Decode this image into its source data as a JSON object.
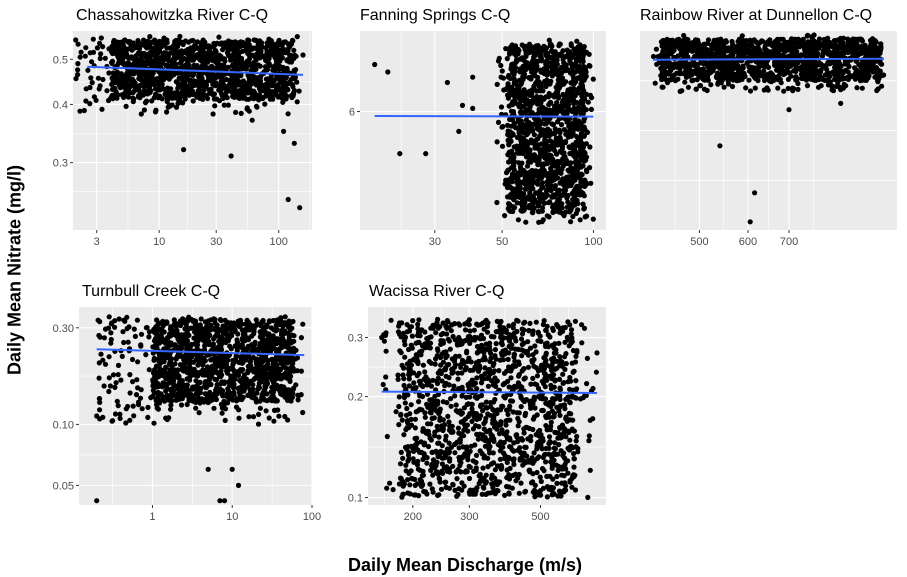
{
  "figure": {
    "xlabel": "Daily Mean Discharge (m/s)",
    "ylabel": "Daily Mean Nitrate (mg/l)"
  },
  "colors": {
    "panel_background": "#ebebeb",
    "gridline": "#ffffff",
    "points": "#000000",
    "fit_line": "#3366ff",
    "tick_label": "#4d4d4d"
  },
  "chart_data": [
    {
      "type": "scatter",
      "title": "Chassahowitzka River C-Q",
      "x_scale": "log",
      "y_scale": "log",
      "xlim": [
        1.9,
        190
      ],
      "ylim": [
        0.215,
        0.575
      ],
      "xticks": [
        3,
        10,
        30,
        100
      ],
      "xtick_labels": [
        "3",
        "10",
        "30",
        "100"
      ],
      "yticks": [
        0.3,
        0.4,
        0.5
      ],
      "ytick_labels": [
        "0.3",
        "0.4",
        "0.5"
      ],
      "grid": true,
      "point_cloud": {
        "x_range": [
          2,
          160
        ],
        "y_range": [
          0.38,
          0.56
        ],
        "core_x": [
          4,
          140
        ],
        "core_y": [
          0.41,
          0.55
        ]
      },
      "outliers": [
        [
          2,
          0.55
        ],
        [
          120,
          0.25
        ],
        [
          150,
          0.24
        ],
        [
          40,
          0.31
        ],
        [
          16,
          0.32
        ],
        [
          110,
          0.35
        ],
        [
          135,
          0.33
        ],
        [
          60,
          0.37
        ]
      ],
      "fit_line": {
        "x": [
          2.5,
          160
        ],
        "y": [
          0.482,
          0.463
        ]
      }
    },
    {
      "type": "scatter",
      "title": "Fanning Springs C-Q",
      "x_scale": "log",
      "y_scale": "log",
      "xlim": [
        17,
        110
      ],
      "ylim": [
        3.2,
        9.2
      ],
      "xticks": [
        30,
        50,
        100
      ],
      "xtick_labels": [
        "30",
        "50",
        "100"
      ],
      "yticks": [
        6
      ],
      "ytick_labels": [
        "6"
      ],
      "grid": true,
      "point_cloud": {
        "x_range": [
          48,
          100
        ],
        "y_range": [
          3.3,
          8.8
        ],
        "core_x": [
          52,
          95
        ],
        "core_y": [
          3.5,
          8.6
        ]
      },
      "outliers": [
        [
          19,
          7.7
        ],
        [
          21,
          7.4
        ],
        [
          23,
          4.8
        ],
        [
          28,
          4.8
        ],
        [
          37,
          6.2
        ],
        [
          40,
          6.1
        ],
        [
          33,
          7.0
        ],
        [
          40,
          7.2
        ],
        [
          36,
          5.4
        ]
      ],
      "fit_line": {
        "x": [
          19,
          100
        ],
        "y": [
          5.86,
          5.84
        ]
      }
    },
    {
      "type": "scatter",
      "title": "Rainbow River at Dunnellon C-Q",
      "x_scale": "log",
      "y_scale": "log",
      "xlim": [
        400,
        1050
      ],
      "ylim": [
        0.55,
        2.0
      ],
      "xticks": [
        500,
        600,
        700
      ],
      "xtick_labels": [
        "500",
        "600",
        "700"
      ],
      "yticks": [],
      "ytick_labels": [],
      "grid": true,
      "point_cloud": {
        "x_range": [
          420,
          1000
        ],
        "y_range": [
          1.35,
          1.95
        ],
        "core_x": [
          430,
          990
        ],
        "core_y": [
          1.45,
          1.9
        ]
      },
      "outliers": [
        [
          540,
          0.95
        ],
        [
          605,
          0.58
        ],
        [
          615,
          0.7
        ],
        [
          700,
          1.2
        ],
        [
          850,
          1.25
        ]
      ],
      "fit_line": {
        "x": [
          420,
          1000
        ],
        "y": [
          1.66,
          1.67
        ]
      }
    },
    {
      "type": "scatter",
      "title": "Turnbull Creek C-Q",
      "x_scale": "log",
      "y_scale": "log",
      "xlim": [
        0.12,
        100
      ],
      "ylim": [
        0.04,
        0.38
      ],
      "xticks": [
        1,
        10,
        100
      ],
      "xtick_labels": [
        "1",
        "10",
        "100"
      ],
      "yticks": [
        0.05,
        0.1,
        0.3
      ],
      "ytick_labels": [
        "0.05",
        "0.10",
        "0.30"
      ],
      "grid": true,
      "point_cloud": {
        "x_range": [
          0.2,
          80
        ],
        "y_range": [
          0.1,
          0.34
        ],
        "core_x": [
          1,
          60
        ],
        "core_y": [
          0.13,
          0.33
        ]
      },
      "outliers": [
        [
          0.2,
          0.042
        ],
        [
          7,
          0.042
        ],
        [
          8,
          0.042
        ],
        [
          5,
          0.06
        ],
        [
          10,
          0.06
        ],
        [
          12,
          0.05
        ],
        [
          0.2,
          0.11
        ]
      ],
      "fit_line": {
        "x": [
          0.2,
          80
        ],
        "y": [
          0.235,
          0.22
        ]
      }
    },
    {
      "type": "scatter",
      "title": "Wacissa River C-Q",
      "x_scale": "log",
      "y_scale": "log",
      "xlim": [
        145,
        800
      ],
      "ylim": [
        0.095,
        0.37
      ],
      "xticks": [
        200,
        300,
        500
      ],
      "xtick_labels": [
        "200",
        "300",
        "500"
      ],
      "yticks": [
        0.1,
        0.2,
        0.3
      ],
      "ytick_labels": [
        "0.1",
        "0.2",
        "0.3"
      ],
      "grid": true,
      "point_cloud": {
        "x_range": [
          160,
          750
        ],
        "y_range": [
          0.1,
          0.34
        ],
        "core_x": [
          180,
          650
        ],
        "core_y": [
          0.1,
          0.34
        ]
      },
      "outliers": [
        [
          160,
          0.3
        ],
        [
          165,
          0.31
        ],
        [
          700,
          0.26
        ],
        [
          750,
          0.27
        ]
      ],
      "fit_line": {
        "x": [
          160,
          750
        ],
        "y": [
          0.207,
          0.205
        ]
      }
    }
  ]
}
